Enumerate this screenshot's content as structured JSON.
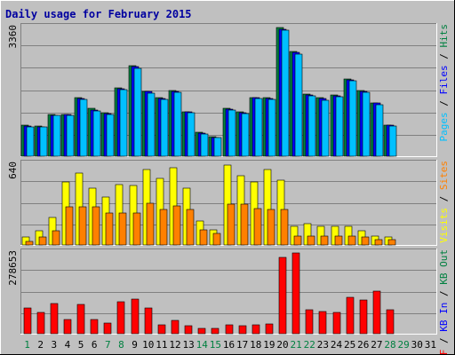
{
  "chart_data": {
    "type": "bar",
    "title": "Daily usage for February 2015",
    "categories": [
      "1",
      "2",
      "3",
      "4",
      "5",
      "6",
      "7",
      "8",
      "9",
      "10",
      "11",
      "12",
      "13",
      "14",
      "15",
      "16",
      "17",
      "18",
      "19",
      "20",
      "21",
      "22",
      "23",
      "24",
      "25",
      "26",
      "27",
      "28",
      "29",
      "30",
      "31"
    ],
    "weekend_days": [
      "1",
      "7",
      "8",
      "14",
      "15",
      "21",
      "22",
      "28",
      "29"
    ],
    "panels": [
      {
        "id": "top",
        "ymax_label": "3360",
        "ymax": 3360,
        "right_labels": [
          {
            "text": "Pages",
            "color": "#00C0FF"
          },
          {
            "text": " / ",
            "color": "#000000"
          },
          {
            "text": "Files",
            "color": "#0000FF"
          },
          {
            "text": " / ",
            "color": "#000000"
          },
          {
            "text": "Hits",
            "color": "#008040"
          }
        ],
        "series": [
          {
            "name": "Hits",
            "color": "#008040",
            "values": [
              800,
              790,
              1090,
              1100,
              1540,
              1240,
              1140,
              1790,
              2370,
              1700,
              1530,
              1720,
              1170,
              620,
              500,
              1250,
              1150,
              1540,
              1520,
              3360,
              2730,
              1630,
              1520,
              1600,
              2020,
              1720,
              1400,
              820,
              0,
              0,
              0
            ]
          },
          {
            "name": "Files",
            "color": "#0000FF",
            "values": [
              780,
              770,
              1070,
              1080,
              1510,
              1210,
              1120,
              1770,
              2340,
              1680,
              1510,
              1700,
              1150,
              610,
              490,
              1230,
              1130,
              1520,
              1500,
              3320,
              2700,
              1600,
              1500,
              1580,
              1990,
              1700,
              1380,
              800,
              0,
              0,
              0
            ]
          },
          {
            "name": "Pages",
            "color": "#00C0FF",
            "values": [
              770,
              760,
              1060,
              1070,
              1480,
              1190,
              1100,
              1740,
              2300,
              1650,
              1480,
              1670,
              1130,
              590,
              480,
              1200,
              1110,
              1500,
              1480,
              3300,
              2660,
              1580,
              1470,
              1560,
              1960,
              1670,
              1350,
              790,
              0,
              0,
              0
            ]
          }
        ]
      },
      {
        "id": "middle",
        "ymax_label": "640",
        "ymax": 640,
        "right_labels": [
          {
            "text": "Visits",
            "color": "#FFFF00"
          },
          {
            "text": " / ",
            "color": "#000000"
          },
          {
            "text": "Sites",
            "color": "#FF8000"
          }
        ],
        "series": [
          {
            "name": "Visits",
            "color": "#FFFF00",
            "values": [
              60,
              110,
              220,
              500,
              570,
              450,
              380,
              480,
              470,
              600,
              530,
              610,
              450,
              190,
              120,
              630,
              550,
              500,
              600,
              510,
              150,
              170,
              150,
              150,
              150,
              110,
              70,
              60,
              0,
              0,
              0
            ]
          },
          {
            "name": "Sites",
            "color": "#FF8000",
            "values": [
              30,
              60,
              110,
              300,
              300,
              300,
              250,
              250,
              250,
              330,
              280,
              310,
              280,
              120,
              90,
              320,
              320,
              290,
              280,
              280,
              70,
              70,
              70,
              70,
              70,
              60,
              40,
              40,
              0,
              0,
              0
            ]
          }
        ]
      },
      {
        "id": "bottom",
        "ymax_label": "278653",
        "ymax": 278653,
        "right_labels": [
          {
            "text": "KB F",
            "color": "#FF0000"
          },
          {
            "text": " / ",
            "color": "#000000"
          },
          {
            "text": "KB In",
            "color": "#0000FF"
          },
          {
            "text": " / ",
            "color": "#000000"
          },
          {
            "text": "KB Out",
            "color": "#008040"
          }
        ],
        "series": [
          {
            "name": "KB F",
            "color": "#FF0000",
            "values": [
              88000,
              74000,
              104000,
              50000,
              100000,
              50000,
              36000,
              110000,
              120000,
              90000,
              32000,
              46000,
              29000,
              18000,
              18000,
              32000,
              29000,
              32000,
              34000,
              262000,
              278653,
              84000,
              78000,
              72000,
              126000,
              116000,
              148000,
              82000,
              0,
              0,
              0
            ]
          }
        ]
      }
    ]
  }
}
